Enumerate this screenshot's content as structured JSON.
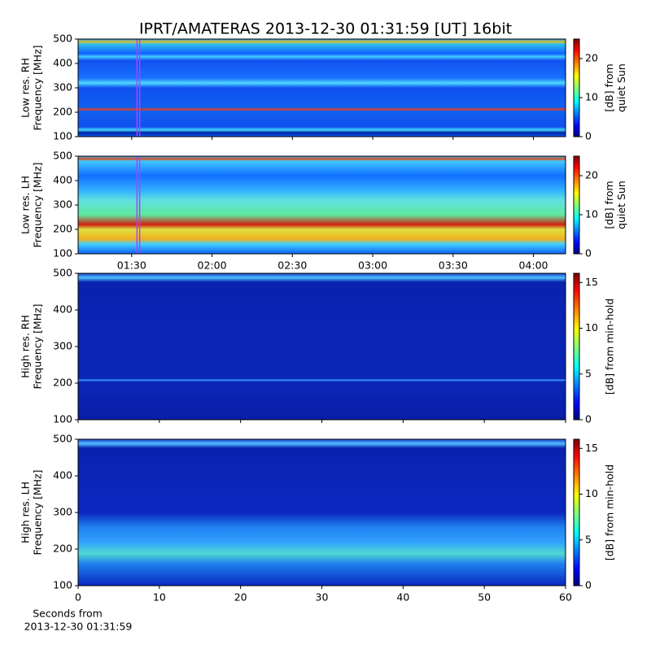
{
  "title": "IPRT/AMATERAS 2013-12-30 01:31:59 [UT]   16bit",
  "xlabel": [
    "Seconds from",
    "2013-12-30 01:31:59"
  ],
  "chart_data": [
    {
      "type": "heatmap",
      "ylabel": [
        "Low res. RH",
        "Frequency [MHz]"
      ],
      "ylim": [
        100,
        500
      ],
      "yticks": [
        100,
        200,
        300,
        400,
        500
      ],
      "xlim": [
        70,
        252
      ],
      "highlight": [
        91.98,
        92.98
      ],
      "highlight_color": "#b040ff",
      "colorbar": {
        "label": [
          "[dB] from",
          "quiet Sun"
        ],
        "lim": [
          0,
          25
        ],
        "ticks": [
          0,
          10,
          20
        ]
      }
    },
    {
      "type": "heatmap",
      "ylabel": [
        "Low res. LH",
        "Frequency [MHz]"
      ],
      "ylim": [
        100,
        500
      ],
      "yticks": [
        100,
        200,
        300,
        400,
        500
      ],
      "xlim": [
        70,
        252
      ],
      "highlight": [
        91.98,
        92.98
      ],
      "highlight_color": "#b040ff",
      "xticks": [
        {
          "value": 90,
          "label": "01:30"
        },
        {
          "value": 120,
          "label": "02:00"
        },
        {
          "value": 150,
          "label": "02:30"
        },
        {
          "value": 180,
          "label": "03:00"
        },
        {
          "value": 210,
          "label": "03:30"
        },
        {
          "value": 240,
          "label": "04:00"
        }
      ],
      "colorbar": {
        "label": [
          "[dB] from",
          "quiet Sun"
        ],
        "lim": [
          0,
          25
        ],
        "ticks": [
          0,
          10,
          20
        ]
      }
    },
    {
      "type": "heatmap",
      "ylabel": [
        "High res. RH",
        "Frequency [MHz]"
      ],
      "ylim": [
        100,
        500
      ],
      "yticks": [
        100,
        200,
        300,
        400,
        500
      ],
      "xlim": [
        0,
        60
      ],
      "colorbar": {
        "label": [
          "[dB] from min-hold"
        ],
        "lim": [
          0,
          16
        ],
        "ticks": [
          0,
          5,
          10,
          15
        ]
      }
    },
    {
      "type": "heatmap",
      "ylabel": [
        "High res. LH",
        "Frequency [MHz]"
      ],
      "ylim": [
        100,
        500
      ],
      "yticks": [
        100,
        200,
        300,
        400,
        500
      ],
      "xlim": [
        0,
        60
      ],
      "xticks": [
        0,
        10,
        20,
        30,
        40,
        50,
        60
      ],
      "colorbar": {
        "label": [
          "[dB] from min-hold"
        ],
        "lim": [
          0,
          16
        ],
        "ticks": [
          0,
          5,
          10,
          15
        ]
      }
    }
  ]
}
